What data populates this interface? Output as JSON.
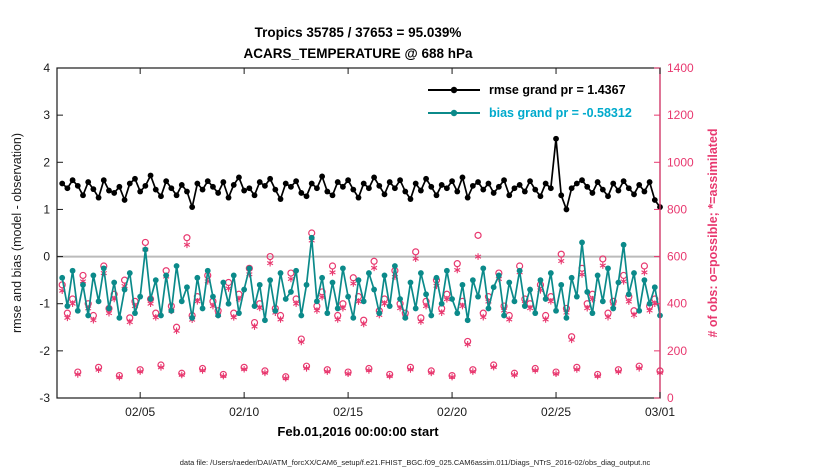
{
  "footer": {
    "text": "data file: /Users/raeder/DAI/ATM_forcXX/CAM6_setup/f.e21.FHIST_BGC.f09_025.CAM6assim.011/Diags_NTrS_2016-02/obs_diag_output.nc"
  },
  "chart_data": {
    "type": "line",
    "title": "Tropics 35785 / 37653 = 95.039%",
    "subtitle": "ACARS_TEMPERATURE @ 688 hPa",
    "xlabel": "Feb.01,2016 00:00:00 start",
    "ylabel_left": "rmse and bias (model - observation)",
    "ylabel_right": "# of obs: o=possible; *=assimilated",
    "xlim": [
      0,
      29
    ],
    "ylim_left": [
      -3,
      4
    ],
    "ylim_right": [
      0,
      1400
    ],
    "x_start_day": 0.25,
    "x_step_days": 0.25,
    "left_ticks": [
      4,
      3,
      2,
      1,
      0,
      -1,
      -2,
      -3
    ],
    "right_ticks": [
      1400,
      1200,
      1000,
      800,
      600,
      400,
      200,
      0
    ],
    "x_ticks": [
      {
        "t": 4,
        "label": "02/05"
      },
      {
        "t": 9,
        "label": "02/10"
      },
      {
        "t": 14,
        "label": "02/15"
      },
      {
        "t": 19,
        "label": "02/20"
      },
      {
        "t": 24,
        "label": "02/25"
      },
      {
        "t": 29,
        "label": "03/01"
      }
    ],
    "zero_line": 0,
    "colors": {
      "counts": "#e8386f",
      "zero_line": "#bbbbbb",
      "axis": "#1a1a1a"
    },
    "legend": [
      {
        "label": "rmse grand pr = 1.4367",
        "text_color": "#000000",
        "line_color": "#000000"
      },
      {
        "label": "bias grand pr = -0.58312",
        "text_color": "#00aacc",
        "line_color": "#0b8a8a"
      }
    ],
    "series": [
      {
        "name": "rmse",
        "axis": "left",
        "line": true,
        "marker": "circle",
        "color": "#000000",
        "values": [
          1.55,
          1.45,
          1.62,
          1.5,
          1.3,
          1.58,
          1.43,
          1.25,
          1.62,
          1.4,
          1.35,
          1.48,
          1.2,
          1.55,
          1.65,
          1.38,
          1.5,
          1.72,
          1.42,
          1.28,
          1.6,
          1.45,
          1.3,
          1.52,
          1.38,
          1.05,
          1.55,
          1.42,
          1.6,
          1.48,
          1.35,
          1.58,
          1.25,
          1.52,
          1.68,
          1.4,
          1.45,
          1.3,
          1.58,
          1.5,
          1.65,
          1.42,
          1.22,
          1.55,
          1.48,
          1.6,
          1.35,
          1.28,
          1.55,
          1.45,
          1.7,
          1.38,
          1.3,
          1.58,
          1.48,
          1.62,
          1.42,
          1.25,
          1.55,
          1.45,
          1.68,
          1.5,
          1.32,
          1.58,
          1.45,
          1.62,
          1.38,
          1.22,
          1.55,
          1.4,
          1.65,
          1.48,
          1.3,
          1.52,
          1.45,
          1.6,
          1.38,
          1.68,
          1.25,
          1.5,
          1.58,
          1.42,
          1.55,
          1.35,
          1.48,
          1.62,
          1.3,
          1.45,
          1.52,
          1.38,
          1.6,
          1.42,
          1.28,
          1.55,
          1.45,
          2.5,
          1.3,
          1.0,
          1.45,
          1.55,
          1.62,
          1.48,
          1.35,
          1.58,
          1.42,
          1.28,
          1.55,
          1.4,
          1.6,
          1.45,
          1.32,
          1.52,
          1.38,
          1.58,
          1.2,
          1.05
        ]
      },
      {
        "name": "bias",
        "axis": "left",
        "line": true,
        "marker": "circle",
        "color": "#0b8a8a",
        "values": [
          -0.45,
          -1.05,
          -0.3,
          -1.15,
          -0.6,
          -1.25,
          -0.4,
          -0.95,
          -0.25,
          -1.1,
          -0.55,
          -1.3,
          -0.7,
          -0.35,
          -1.2,
          -0.85,
          0.15,
          -0.9,
          -0.5,
          -1.25,
          -0.4,
          -1.15,
          -0.2,
          -0.95,
          -0.65,
          -1.3,
          -0.45,
          -1.1,
          -0.3,
          -0.85,
          -1.25,
          -0.55,
          -1.0,
          -0.4,
          -1.2,
          -0.7,
          -0.25,
          -1.05,
          -0.6,
          -1.35,
          -0.5,
          -1.15,
          -0.35,
          -0.9,
          -0.75,
          -0.3,
          -1.25,
          -0.6,
          0.4,
          -0.95,
          -0.45,
          -1.2,
          -0.55,
          -1.1,
          -0.25,
          -0.85,
          -1.3,
          -0.5,
          -0.95,
          -0.35,
          -0.7,
          -1.2,
          -0.4,
          -1.05,
          -0.2,
          -0.9,
          -1.3,
          -0.55,
          -1.1,
          -0.35,
          -0.8,
          -1.25,
          -0.45,
          -1.0,
          -0.3,
          -0.9,
          -1.2,
          -0.6,
          -1.35,
          -0.5,
          -0.85,
          -0.25,
          -1.1,
          -0.65,
          -0.4,
          -1.25,
          -0.55,
          -0.95,
          -0.3,
          -1.05,
          -0.7,
          -1.2,
          -0.5,
          -0.9,
          -0.35,
          -1.15,
          -0.6,
          -1.3,
          -0.45,
          -0.85,
          0.3,
          -0.75,
          -1.2,
          -0.4,
          -0.95,
          -0.25,
          -1.1,
          -0.55,
          0.25,
          -0.8,
          -0.35,
          -1.15,
          -0.5,
          -1.0,
          -0.65,
          -1.25
        ]
      },
      {
        "name": "possible_obs",
        "axis": "right",
        "line": false,
        "marker": "open-circle",
        "color": "#e8386f",
        "values": [
          480,
          360,
          420,
          110,
          520,
          400,
          350,
          130,
          560,
          380,
          440,
          95,
          500,
          340,
          410,
          120,
          660,
          420,
          360,
          140,
          540,
          390,
          300,
          105,
          680,
          350,
          430,
          125,
          520,
          410,
          370,
          100,
          490,
          360,
          440,
          130,
          550,
          320,
          400,
          115,
          600,
          380,
          350,
          90,
          530,
          420,
          250,
          135,
          700,
          390,
          450,
          120,
          560,
          350,
          400,
          110,
          510,
          430,
          330,
          125,
          580,
          370,
          420,
          100,
          540,
          400,
          360,
          130,
          620,
          340,
          410,
          115,
          500,
          380,
          440,
          95,
          570,
          410,
          240,
          120,
          690,
          360,
          430,
          140,
          530,
          390,
          350,
          105,
          560,
          420,
          400,
          125,
          480,
          350,
          430,
          110,
          610,
          380,
          260,
          130,
          550,
          400,
          440,
          100,
          590,
          360,
          410,
          120,
          520,
          430,
          370,
          135,
          560,
          390,
          420,
          115
        ]
      },
      {
        "name": "assimilated_obs",
        "axis": "right",
        "line": false,
        "marker": "asterisk",
        "color": "#e8386f",
        "values": [
          455,
          340,
          400,
          100,
          495,
          380,
          330,
          120,
          530,
          360,
          420,
          88,
          475,
          322,
          390,
          112,
          630,
          400,
          342,
          130,
          515,
          370,
          285,
          98,
          650,
          332,
          410,
          117,
          495,
          390,
          352,
          93,
          465,
          342,
          420,
          122,
          525,
          303,
          382,
          107,
          572,
          362,
          333,
          84,
          505,
          400,
          238,
          126,
          668,
          371,
          428,
          112,
          533,
          333,
          381,
          103,
          486,
          409,
          314,
          117,
          552,
          352,
          400,
          93,
          514,
          381,
          343,
          121,
          591,
          324,
          390,
          107,
          476,
          362,
          419,
          89,
          543,
          390,
          228,
          112,
          600,
          343,
          409,
          131,
          505,
          371,
          333,
          98,
          533,
          400,
          381,
          117,
          457,
          333,
          410,
          103,
          581,
          362,
          247,
          121,
          524,
          381,
          419,
          93,
          562,
          343,
          390,
          112,
          495,
          409,
          352,
          126,
          533,
          371,
          400,
          107
        ]
      }
    ]
  }
}
